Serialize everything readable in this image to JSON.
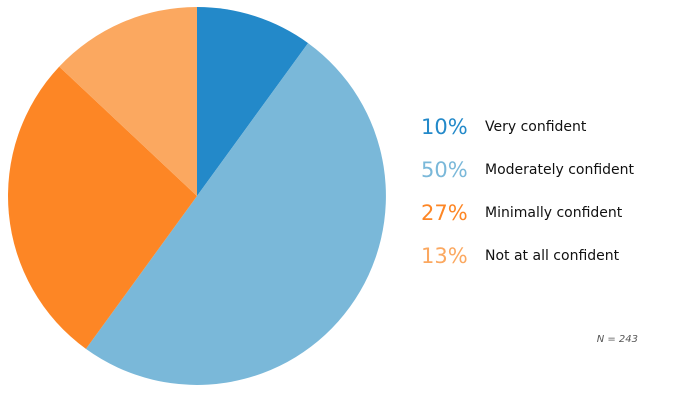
{
  "chart_data": {
    "type": "pie",
    "slices": [
      {
        "value": 10,
        "percent_label": "10%",
        "label": "Very confident",
        "color": "#2389c9"
      },
      {
        "value": 50,
        "percent_label": "50%",
        "label": "Moderately confident",
        "color": "#7ab8d9"
      },
      {
        "value": 27,
        "percent_label": "27%",
        "label": "Minimally confident",
        "color": "#fd8625"
      },
      {
        "value": 13,
        "percent_label": "13%",
        "label": "Not at all confident",
        "color": "#fba860"
      }
    ],
    "start_angle_deg": 0,
    "direction": "clockwise",
    "legend_position": "right",
    "note": "N = 243"
  }
}
